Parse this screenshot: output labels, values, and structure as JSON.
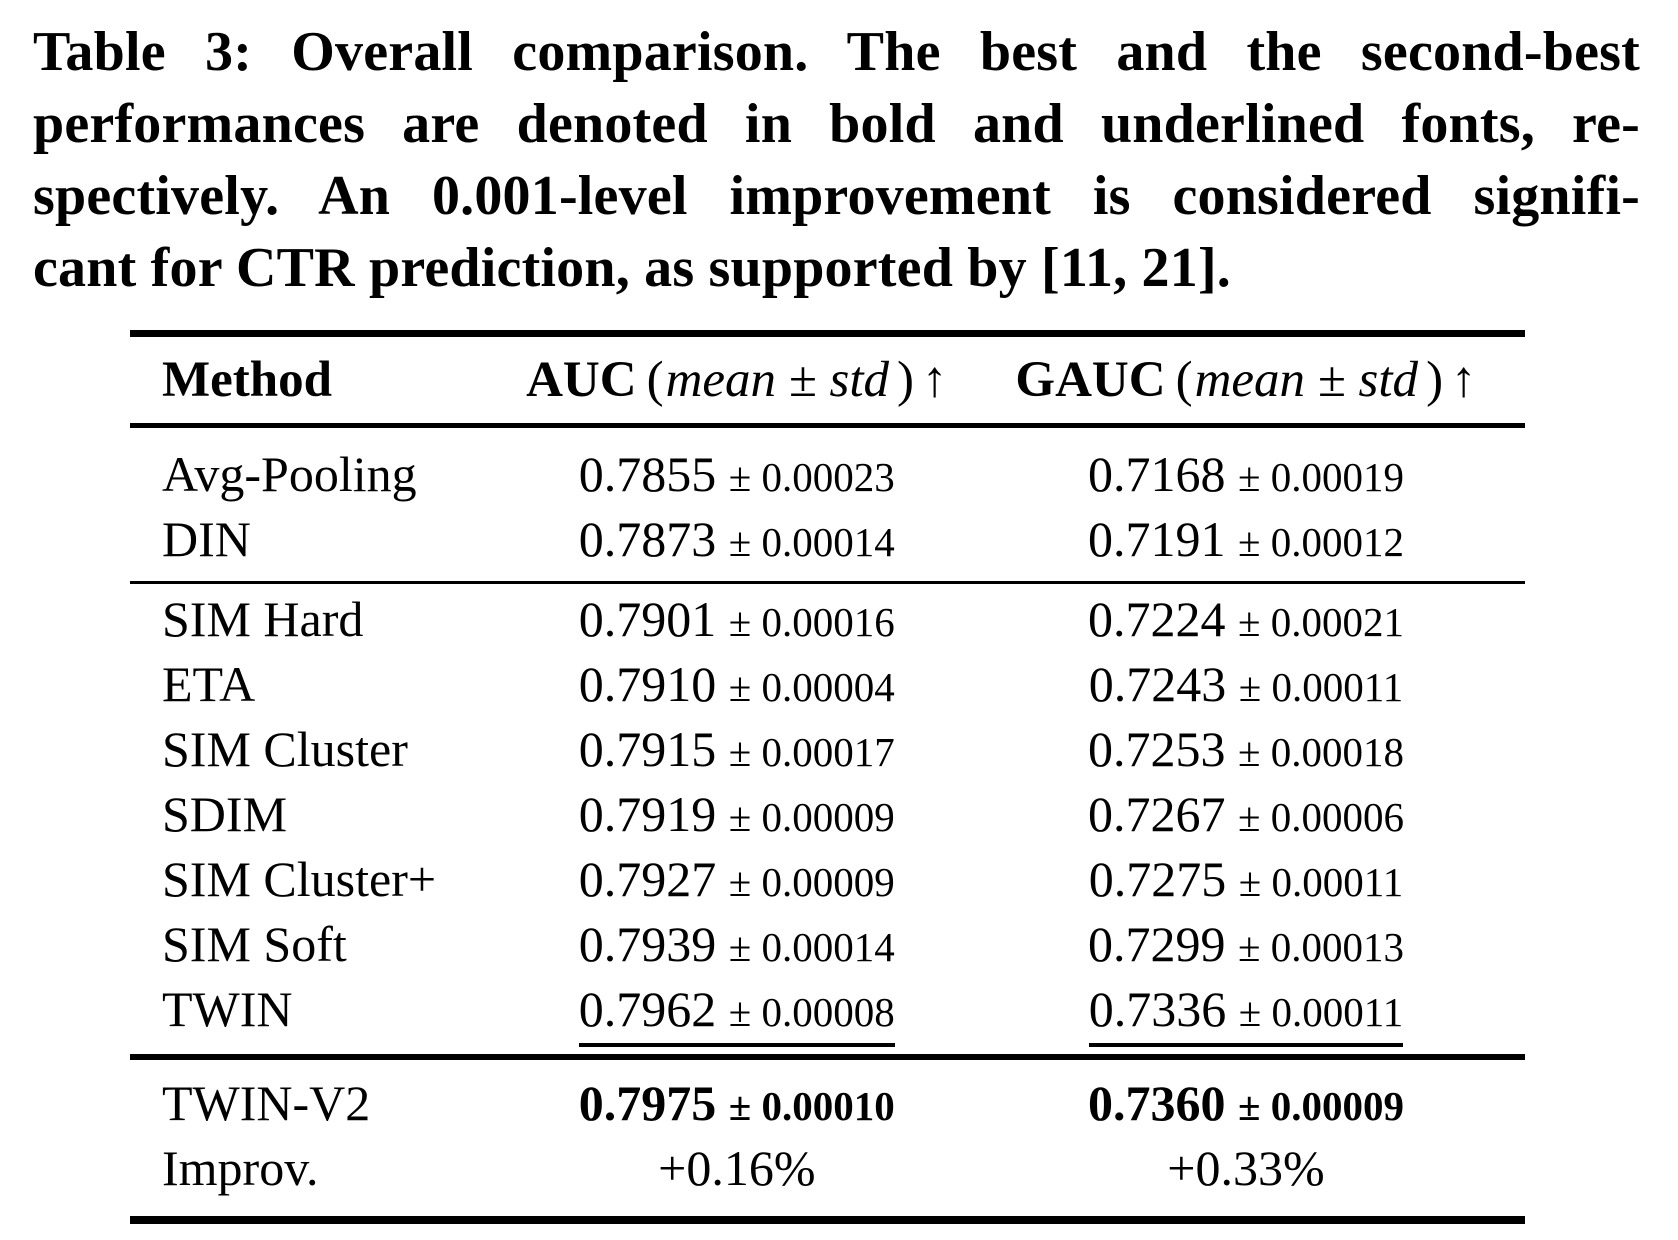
{
  "caption": {
    "lines": [
      "Table 3: Overall comparison. The best and the second-best",
      "performances are denoted in bold and underlined fonts, re-",
      "spectively. An 0.001-level improvement is considered signifi-",
      "cant for CTR prediction, as supported by [11, 21]."
    ]
  },
  "table": {
    "header": {
      "method": "Method",
      "auc": {
        "name": "AUC",
        "open": "(",
        "qualifier": "mean ± std",
        "close": ")",
        "arrow": "↑"
      },
      "gauc": {
        "name": "GAUC",
        "open": "(",
        "qualifier": "mean ± std",
        "close": ")",
        "arrow": "↑"
      }
    },
    "rows": [
      {
        "method": "Avg-Pooling",
        "auc": {
          "mean": "0.7855",
          "std": "± 0.00023"
        },
        "gauc": {
          "mean": "0.7168",
          "std": "± 0.00019"
        },
        "emphasis": "none"
      },
      {
        "method": "DIN",
        "auc": {
          "mean": "0.7873",
          "std": "± 0.00014"
        },
        "gauc": {
          "mean": "0.7191",
          "std": "± 0.00012"
        },
        "emphasis": "none"
      },
      {
        "method": "SIM Hard",
        "auc": {
          "mean": "0.7901",
          "std": "± 0.00016"
        },
        "gauc": {
          "mean": "0.7224",
          "std": "± 0.00021"
        },
        "emphasis": "none"
      },
      {
        "method": "ETA",
        "auc": {
          "mean": "0.7910",
          "std": "± 0.00004"
        },
        "gauc": {
          "mean": "0.7243",
          "std": "± 0.00011"
        },
        "emphasis": "none"
      },
      {
        "method": "SIM Cluster",
        "auc": {
          "mean": "0.7915",
          "std": "± 0.00017"
        },
        "gauc": {
          "mean": "0.7253",
          "std": "± 0.00018"
        },
        "emphasis": "none"
      },
      {
        "method": "SDIM",
        "auc": {
          "mean": "0.7919",
          "std": "± 0.00009"
        },
        "gauc": {
          "mean": "0.7267",
          "std": "± 0.00006"
        },
        "emphasis": "none"
      },
      {
        "method": "SIM Cluster+",
        "auc": {
          "mean": "0.7927",
          "std": "± 0.00009"
        },
        "gauc": {
          "mean": "0.7275",
          "std": "± 0.00011"
        },
        "emphasis": "none"
      },
      {
        "method": "SIM Soft",
        "auc": {
          "mean": "0.7939",
          "std": "± 0.00014"
        },
        "gauc": {
          "mean": "0.7299",
          "std": "± 0.00013"
        },
        "emphasis": "none"
      },
      {
        "method": "TWIN",
        "auc": {
          "mean": "0.7962",
          "std": "± 0.00008"
        },
        "gauc": {
          "mean": "0.7336",
          "std": "± 0.00011"
        },
        "emphasis": "underline"
      },
      {
        "method": "TWIN-V2",
        "auc": {
          "mean": "0.7975",
          "std": "± 0.00010"
        },
        "gauc": {
          "mean": "0.7360",
          "std": "± 0.00009"
        },
        "emphasis": "bold"
      },
      {
        "method": "Improv.",
        "auc_text": "+0.16%",
        "gauc_text": "+0.33%",
        "emphasis": "none"
      }
    ]
  }
}
